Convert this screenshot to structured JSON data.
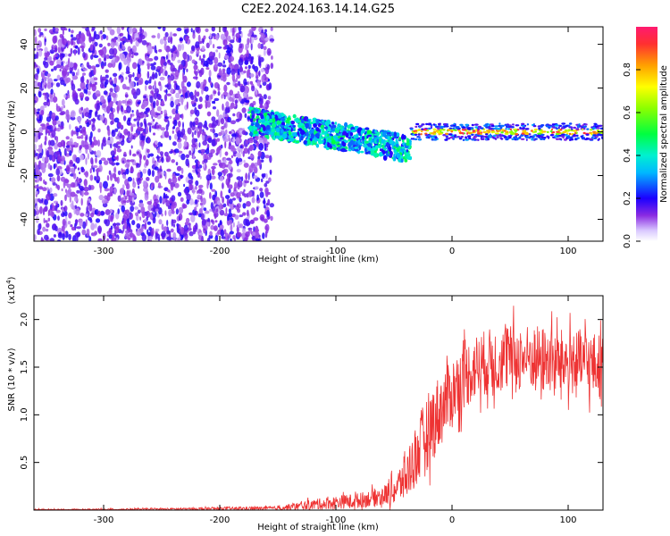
{
  "figure": {
    "title": "C2E2.2024.163.14.14.G25"
  },
  "chart_data": [
    {
      "type": "heatmap",
      "xlabel": "Height of straight line (km)",
      "ylabel": "Frequency (Hz)",
      "xlim": [
        -360,
        130
      ],
      "ylim": [
        -50,
        48
      ],
      "x_ticks": [
        -300,
        -200,
        -100,
        0,
        100
      ],
      "y_ticks": [
        -40,
        -20,
        0,
        20,
        40
      ],
      "colorbar": {
        "label": "Normalized spectral amplitude",
        "range": [
          0.0,
          1.0
        ],
        "ticks": [
          0.0,
          0.2,
          0.4,
          0.6,
          0.8
        ],
        "tick_labels": [
          "0.0",
          "0.2",
          "0.4",
          "0.6",
          "0.8"
        ]
      },
      "regions": [
        {
          "x_range": [
            -360,
            -155
          ],
          "freq_range": [
            -50,
            48
          ],
          "amplitude": 0.15,
          "description": "broadband noise"
        },
        {
          "x_range": [
            -175,
            -35
          ],
          "freq_center_start": 5,
          "freq_center_end": -8,
          "freq_halfwidth": 6,
          "amplitude": 0.35
        },
        {
          "x_range": [
            -35,
            130
          ],
          "freq_center": 0,
          "freq_halfwidth": 1.5,
          "amplitude": 0.8
        }
      ],
      "grid": false
    },
    {
      "type": "line",
      "xlabel": "Height of straight line (km)",
      "ylabel": "SNR (10 * v/v)",
      "y_multiplier": "(x10",
      "y_multiplier_exp": "4",
      "y_multiplier_close": ")",
      "xlim": [
        -360,
        130
      ],
      "ylim": [
        0,
        2.25
      ],
      "x_ticks": [
        -300,
        -200,
        -100,
        0,
        100
      ],
      "y_ticks": [
        0.5,
        1.0,
        1.5,
        2.0
      ],
      "y_tick_labels": [
        "0.5",
        "1.0",
        "1.5",
        "2.0"
      ],
      "series": [
        {
          "color": "#ee3333",
          "envelope": {
            "x": [
              -360,
              -250,
              -150,
              -125,
              -100,
              -80,
              -60,
              -50,
              -40,
              -30,
              -20,
              -10,
              0,
              10,
              20,
              30,
              50,
              70,
              90,
              110,
              130
            ],
            "mean": [
              0.0,
              0.01,
              0.02,
              0.05,
              0.08,
              0.1,
              0.15,
              0.2,
              0.35,
              0.6,
              0.85,
              1.05,
              1.25,
              1.4,
              1.5,
              1.55,
              1.6,
              1.6,
              1.55,
              1.55,
              1.5
            ],
            "spread": [
              0.01,
              0.01,
              0.02,
              0.05,
              0.07,
              0.08,
              0.1,
              0.15,
              0.25,
              0.35,
              0.4,
              0.4,
              0.35,
              0.35,
              0.35,
              0.35,
              0.35,
              0.35,
              0.35,
              0.35,
              0.35
            ]
          }
        }
      ],
      "grid": false
    }
  ]
}
